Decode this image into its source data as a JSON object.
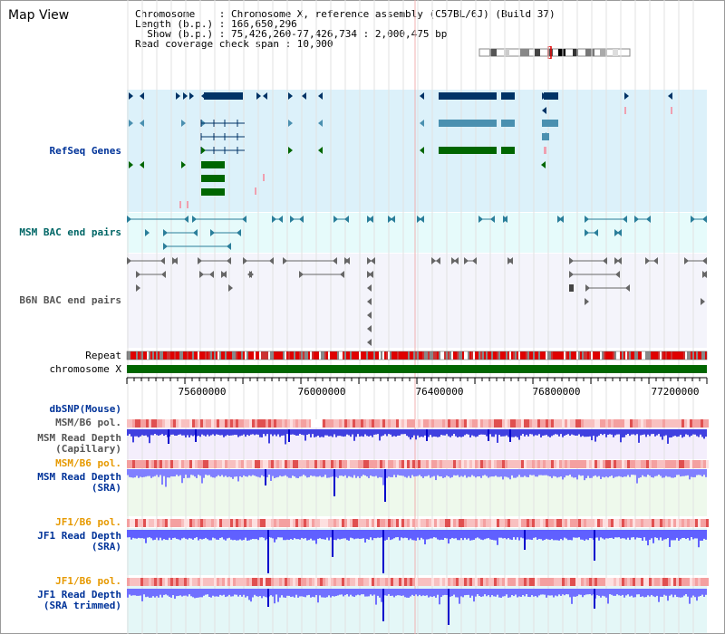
{
  "app": {
    "title": "Map View"
  },
  "info": {
    "chromosome": "Chromosome    : Chromosome X, reference assembly (C57BL/6J) (Build 37)",
    "length": "Length (b.p.) : 166,650,296",
    "show": "  Show (b.p.) : 75,426,260-77,426,734 : 2,000,475 bp",
    "coverage": "Read coverage check span : 10,000"
  },
  "tracks": {
    "refseq": "RefSeq Genes",
    "msm_bac": "MSM BAC end pairs",
    "b6n_bac": "B6N BAC end pairs",
    "repeat": "Repeat",
    "chromosome": "chromosome X",
    "dbsnp": "dbSNP(Mouse)",
    "msm_b6_pol_1": "MSM/B6 pol.",
    "msm_depth_cap_1": "MSM Read Depth",
    "msm_depth_cap_2": "(Capillary)",
    "msm_b6_pol_2": "MSM/B6 pol.",
    "msm_depth_sra_1": "MSM Read Depth",
    "msm_depth_sra_2": "(SRA)",
    "jf1_b6_pol_1": "JF1/B6 pol.",
    "jf1_depth_sra_1": "JF1 Read Depth",
    "jf1_depth_sra_2": "(SRA)",
    "jf1_b6_pol_2": "JF1/B6 pol.",
    "jf1_depth_trim_1": "JF1 Read Depth",
    "jf1_depth_trim_2": "(SRA trimmed)"
  },
  "axis": {
    "ticks": [
      "75600000",
      "76000000",
      "76400000",
      "76800000",
      "77200000"
    ]
  },
  "colors": {
    "refseq_bg": "#dcf1fa",
    "bac_bg": "#e6fbfb",
    "b6n_bg": "#f4f4fb",
    "gene_dark": "#003366",
    "gene_mid": "#4a90b0",
    "gene_green": "#006600",
    "label_blue": "#003399",
    "label_teal": "#006666",
    "label_orange": "#e69900",
    "depth_blue": "#5050ff"
  }
}
